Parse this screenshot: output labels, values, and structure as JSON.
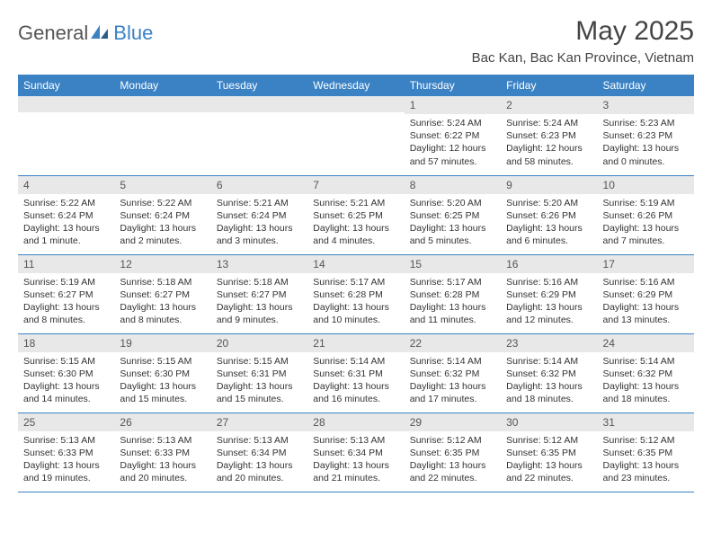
{
  "logo": {
    "word1": "General",
    "word2": "Blue"
  },
  "title": "May 2025",
  "location": "Bac Kan, Bac Kan Province, Vietnam",
  "colors": {
    "header_bg": "#3b82c4",
    "header_text": "#ffffff",
    "daynum_bg": "#e8e8e8",
    "row_border": "#3b82c4",
    "logo_gray": "#555555",
    "logo_blue": "#3b82c4",
    "body_text": "#333333"
  },
  "dayHeaders": [
    "Sunday",
    "Monday",
    "Tuesday",
    "Wednesday",
    "Thursday",
    "Friday",
    "Saturday"
  ],
  "weeks": [
    [
      {
        "n": "",
        "sr": "",
        "ss": "",
        "dl": ""
      },
      {
        "n": "",
        "sr": "",
        "ss": "",
        "dl": ""
      },
      {
        "n": "",
        "sr": "",
        "ss": "",
        "dl": ""
      },
      {
        "n": "",
        "sr": "",
        "ss": "",
        "dl": ""
      },
      {
        "n": "1",
        "sr": "Sunrise: 5:24 AM",
        "ss": "Sunset: 6:22 PM",
        "dl": "Daylight: 12 hours and 57 minutes."
      },
      {
        "n": "2",
        "sr": "Sunrise: 5:24 AM",
        "ss": "Sunset: 6:23 PM",
        "dl": "Daylight: 12 hours and 58 minutes."
      },
      {
        "n": "3",
        "sr": "Sunrise: 5:23 AM",
        "ss": "Sunset: 6:23 PM",
        "dl": "Daylight: 13 hours and 0 minutes."
      }
    ],
    [
      {
        "n": "4",
        "sr": "Sunrise: 5:22 AM",
        "ss": "Sunset: 6:24 PM",
        "dl": "Daylight: 13 hours and 1 minute."
      },
      {
        "n": "5",
        "sr": "Sunrise: 5:22 AM",
        "ss": "Sunset: 6:24 PM",
        "dl": "Daylight: 13 hours and 2 minutes."
      },
      {
        "n": "6",
        "sr": "Sunrise: 5:21 AM",
        "ss": "Sunset: 6:24 PM",
        "dl": "Daylight: 13 hours and 3 minutes."
      },
      {
        "n": "7",
        "sr": "Sunrise: 5:21 AM",
        "ss": "Sunset: 6:25 PM",
        "dl": "Daylight: 13 hours and 4 minutes."
      },
      {
        "n": "8",
        "sr": "Sunrise: 5:20 AM",
        "ss": "Sunset: 6:25 PM",
        "dl": "Daylight: 13 hours and 5 minutes."
      },
      {
        "n": "9",
        "sr": "Sunrise: 5:20 AM",
        "ss": "Sunset: 6:26 PM",
        "dl": "Daylight: 13 hours and 6 minutes."
      },
      {
        "n": "10",
        "sr": "Sunrise: 5:19 AM",
        "ss": "Sunset: 6:26 PM",
        "dl": "Daylight: 13 hours and 7 minutes."
      }
    ],
    [
      {
        "n": "11",
        "sr": "Sunrise: 5:19 AM",
        "ss": "Sunset: 6:27 PM",
        "dl": "Daylight: 13 hours and 8 minutes."
      },
      {
        "n": "12",
        "sr": "Sunrise: 5:18 AM",
        "ss": "Sunset: 6:27 PM",
        "dl": "Daylight: 13 hours and 8 minutes."
      },
      {
        "n": "13",
        "sr": "Sunrise: 5:18 AM",
        "ss": "Sunset: 6:27 PM",
        "dl": "Daylight: 13 hours and 9 minutes."
      },
      {
        "n": "14",
        "sr": "Sunrise: 5:17 AM",
        "ss": "Sunset: 6:28 PM",
        "dl": "Daylight: 13 hours and 10 minutes."
      },
      {
        "n": "15",
        "sr": "Sunrise: 5:17 AM",
        "ss": "Sunset: 6:28 PM",
        "dl": "Daylight: 13 hours and 11 minutes."
      },
      {
        "n": "16",
        "sr": "Sunrise: 5:16 AM",
        "ss": "Sunset: 6:29 PM",
        "dl": "Daylight: 13 hours and 12 minutes."
      },
      {
        "n": "17",
        "sr": "Sunrise: 5:16 AM",
        "ss": "Sunset: 6:29 PM",
        "dl": "Daylight: 13 hours and 13 minutes."
      }
    ],
    [
      {
        "n": "18",
        "sr": "Sunrise: 5:15 AM",
        "ss": "Sunset: 6:30 PM",
        "dl": "Daylight: 13 hours and 14 minutes."
      },
      {
        "n": "19",
        "sr": "Sunrise: 5:15 AM",
        "ss": "Sunset: 6:30 PM",
        "dl": "Daylight: 13 hours and 15 minutes."
      },
      {
        "n": "20",
        "sr": "Sunrise: 5:15 AM",
        "ss": "Sunset: 6:31 PM",
        "dl": "Daylight: 13 hours and 15 minutes."
      },
      {
        "n": "21",
        "sr": "Sunrise: 5:14 AM",
        "ss": "Sunset: 6:31 PM",
        "dl": "Daylight: 13 hours and 16 minutes."
      },
      {
        "n": "22",
        "sr": "Sunrise: 5:14 AM",
        "ss": "Sunset: 6:32 PM",
        "dl": "Daylight: 13 hours and 17 minutes."
      },
      {
        "n": "23",
        "sr": "Sunrise: 5:14 AM",
        "ss": "Sunset: 6:32 PM",
        "dl": "Daylight: 13 hours and 18 minutes."
      },
      {
        "n": "24",
        "sr": "Sunrise: 5:14 AM",
        "ss": "Sunset: 6:32 PM",
        "dl": "Daylight: 13 hours and 18 minutes."
      }
    ],
    [
      {
        "n": "25",
        "sr": "Sunrise: 5:13 AM",
        "ss": "Sunset: 6:33 PM",
        "dl": "Daylight: 13 hours and 19 minutes."
      },
      {
        "n": "26",
        "sr": "Sunrise: 5:13 AM",
        "ss": "Sunset: 6:33 PM",
        "dl": "Daylight: 13 hours and 20 minutes."
      },
      {
        "n": "27",
        "sr": "Sunrise: 5:13 AM",
        "ss": "Sunset: 6:34 PM",
        "dl": "Daylight: 13 hours and 20 minutes."
      },
      {
        "n": "28",
        "sr": "Sunrise: 5:13 AM",
        "ss": "Sunset: 6:34 PM",
        "dl": "Daylight: 13 hours and 21 minutes."
      },
      {
        "n": "29",
        "sr": "Sunrise: 5:12 AM",
        "ss": "Sunset: 6:35 PM",
        "dl": "Daylight: 13 hours and 22 minutes."
      },
      {
        "n": "30",
        "sr": "Sunrise: 5:12 AM",
        "ss": "Sunset: 6:35 PM",
        "dl": "Daylight: 13 hours and 22 minutes."
      },
      {
        "n": "31",
        "sr": "Sunrise: 5:12 AM",
        "ss": "Sunset: 6:35 PM",
        "dl": "Daylight: 13 hours and 23 minutes."
      }
    ]
  ]
}
